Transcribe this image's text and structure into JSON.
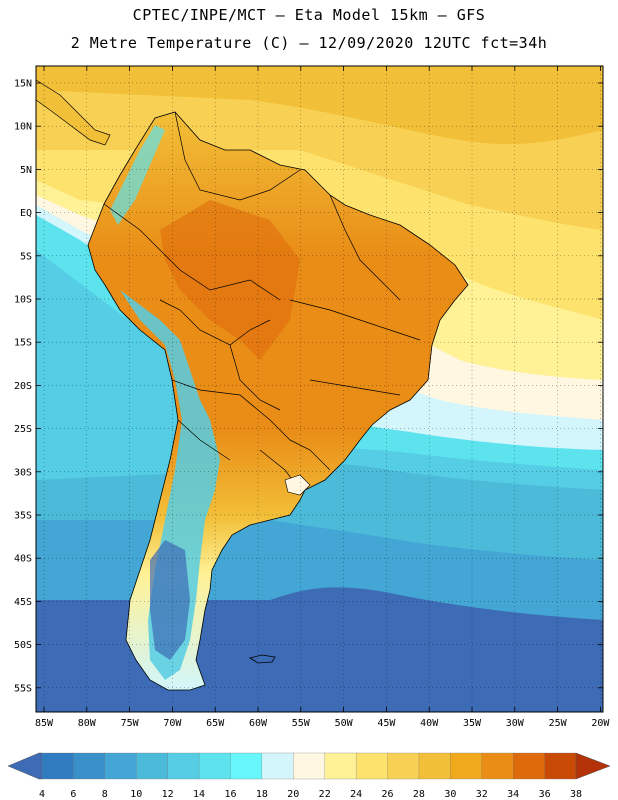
{
  "header": {
    "line1": "CPTEC/INPE/MCT –  Eta Model 15km – GFS",
    "line2": "2 Metre Temperature (C) – 12/09/2020 12UTC fct=34h"
  },
  "map": {
    "lat_labels": [
      "15N",
      "10N",
      "5N",
      "EQ",
      "5S",
      "10S",
      "15S",
      "20S",
      "25S",
      "30S",
      "35S",
      "40S",
      "45S",
      "50S",
      "55S"
    ],
    "lon_labels": [
      "85W",
      "80W",
      "75W",
      "70W",
      "65W",
      "60W",
      "55W",
      "50W",
      "45W",
      "40W",
      "35W",
      "30W",
      "25W",
      "20W"
    ]
  },
  "colorbar": {
    "labels": [
      "4",
      "6",
      "8",
      "10",
      "12",
      "14",
      "16",
      "18",
      "20",
      "22",
      "24",
      "26",
      "28",
      "30",
      "32",
      "34",
      "36",
      "38"
    ],
    "colors": [
      "#3d6bb5",
      "#2f7cc0",
      "#3a90c8",
      "#44a6d4",
      "#4cbad9",
      "#55cde4",
      "#5ce3ee",
      "#66f6fb",
      "#d2f6fb",
      "#fff7e1",
      "#fff196",
      "#fde36d",
      "#f8d154",
      "#f2bf38",
      "#f0a91c",
      "#e98d17",
      "#de6a0b",
      "#c94a05",
      "#b43208"
    ]
  },
  "colors": {
    "ocean_north": "#f6c63f",
    "ocean_mid": "#fde36d",
    "ocean_south_1": "#55cde4",
    "ocean_south_2": "#3d6bb5",
    "land_hot": "#e98d17"
  }
}
